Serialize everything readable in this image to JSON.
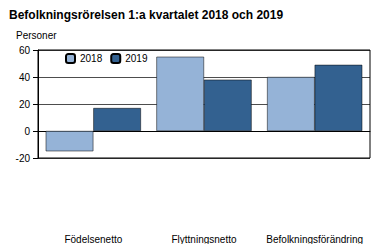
{
  "chart_data": {
    "type": "bar",
    "title": "Befolkningsrörelsen 1:a kvartalet 2018 och 2019",
    "y_label": "Personer",
    "categories": [
      "Födelsenetto",
      "Flyttningsnetto",
      "Befolkningsförändring"
    ],
    "series": [
      {
        "name": "2018",
        "color": "#95b3d7",
        "values": [
          -15,
          55,
          40
        ]
      },
      {
        "name": "2019",
        "color": "#336190",
        "values": [
          17,
          38,
          49
        ]
      }
    ],
    "ylim": [
      -20,
      60
    ],
    "yticks": [
      -20,
      0,
      20,
      40,
      60
    ],
    "grid": true,
    "legend": "top-left"
  }
}
